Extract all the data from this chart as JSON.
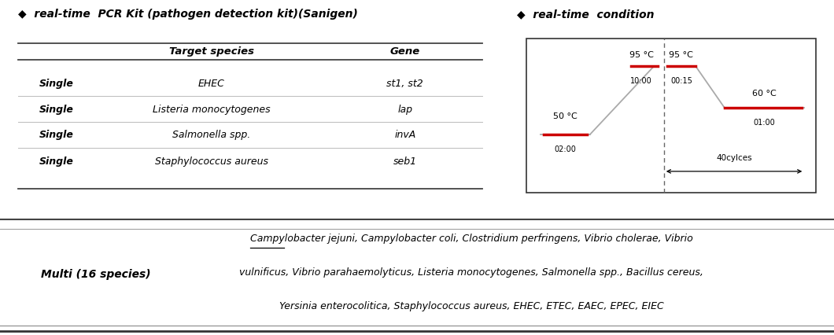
{
  "title_left": "◆  real-time  PCR Kit (pathogen detection kit)(Sanigen)",
  "title_right": "◆  real-time  condition",
  "table_headers": [
    "",
    "Target species",
    "Gene"
  ],
  "table_rows": [
    [
      "Single",
      "EHEC",
      "st1, st2"
    ],
    [
      "Single",
      "Listeria monocytogenes",
      "lap"
    ],
    [
      "Single",
      "Salmonella spp.",
      "invA"
    ],
    [
      "Single",
      "Staphylococcus aureus",
      "seb1"
    ]
  ],
  "multi_label": "Multi (16 species)",
  "multi_text_line1": "Campylobacter jejuni, Campylobacter coli, Clostridium perfringens, Vibrio cholerae, Vibrio",
  "multi_text_line2": "vulnificus, Vibrio parahaemolyticus, Listeria monocytogenes, Salmonella spp., Bacillus cereus,",
  "multi_text_line3": "Yersinia enterocolitica, Staphylococcus aureus, EHEC, ETEC, EAEC, EPEC, EIEC",
  "bg_color": "#ffffff",
  "text_color": "#000000",
  "red_color": "#cc0000",
  "dark_line": "#444444",
  "gray_line": "#aaaaaa",
  "sep_line": "#bbbbbb",
  "pcr_temps": {
    "step1_temp": "50 °C",
    "step1_time": "02:00",
    "step2_temp": "95 °C",
    "step2_time": "10:00",
    "step3_temp": "95 °C",
    "step3_time": "00:15",
    "step4_temp": "60 °C",
    "step4_time": "01:00",
    "cycles_label": "40cylces"
  }
}
